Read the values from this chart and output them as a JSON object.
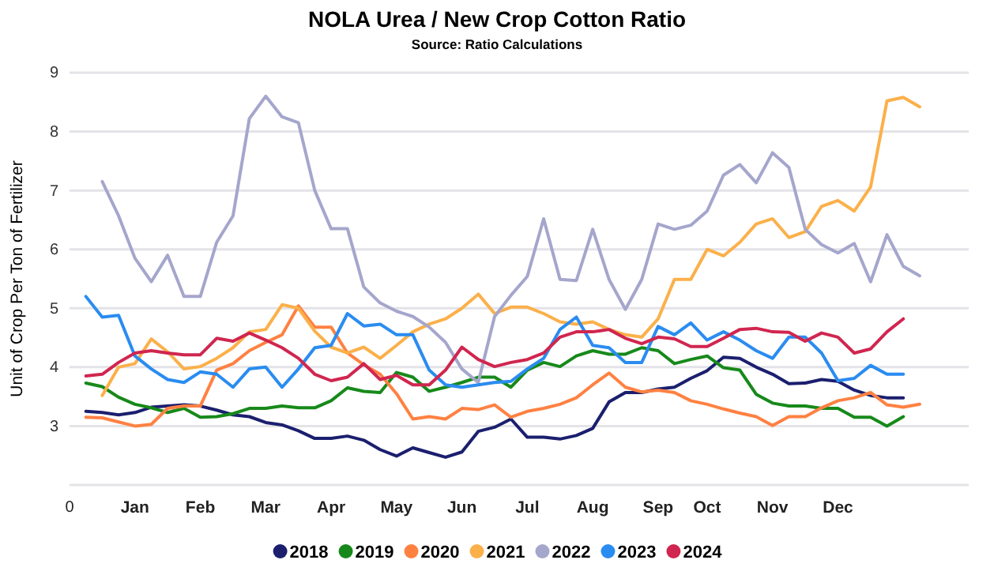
{
  "chart_data": {
    "type": "line",
    "title": "NOLA Urea / New Crop Cotton Ratio",
    "subtitle": "Source: Ratio Calculations",
    "ylabel": "Unit of Crop Per Ton of Fertilizer",
    "categories": [
      "0",
      null,
      null,
      null,
      "Jan",
      null,
      null,
      null,
      "Feb",
      null,
      null,
      null,
      "Mar",
      null,
      null,
      null,
      "Apr",
      null,
      null,
      null,
      "May",
      null,
      null,
      null,
      "Jun",
      null,
      null,
      null,
      "Jul",
      null,
      null,
      null,
      "Aug",
      null,
      null,
      null,
      "Sep",
      null,
      null,
      "Oct",
      null,
      null,
      null,
      "Nov",
      null,
      null,
      null,
      "Dec",
      null,
      null,
      null,
      null,
      null,
      null,
      null,
      null
    ],
    "ylim": [
      2,
      9
    ],
    "yticks": [
      {
        "value": 2,
        "label": null
      },
      3,
      4,
      5,
      6,
      7,
      8,
      9
    ],
    "grid": "y",
    "legend": "bottom",
    "series": [
      {
        "name": "2018",
        "color": "#1b1f6e",
        "values": [
          null,
          3.25,
          3.23,
          3.19,
          3.23,
          3.32,
          3.34,
          3.36,
          3.34,
          3.27,
          3.19,
          3.16,
          3.06,
          3.02,
          2.92,
          2.79,
          2.79,
          2.83,
          2.76,
          2.6,
          2.49,
          2.63,
          2.55,
          2.47,
          2.56,
          2.91,
          2.98,
          3.12,
          2.81,
          2.81,
          2.78,
          2.84,
          2.96,
          3.41,
          3.57,
          3.57,
          3.63,
          3.66,
          3.81,
          3.94,
          4.17,
          4.15,
          4.0,
          3.88,
          3.72,
          3.73,
          3.79,
          3.76,
          3.61,
          3.52,
          3.48,
          3.48,
          null,
          null,
          null,
          null
        ]
      },
      {
        "name": "2019",
        "color": "#17891a",
        "values": [
          null,
          3.73,
          3.67,
          3.49,
          3.37,
          3.31,
          3.23,
          3.3,
          3.15,
          3.16,
          3.21,
          3.3,
          3.3,
          3.34,
          3.31,
          3.31,
          3.43,
          3.65,
          3.59,
          3.57,
          3.91,
          3.83,
          3.59,
          3.66,
          3.74,
          3.83,
          3.83,
          3.66,
          3.95,
          4.08,
          4.01,
          4.19,
          4.28,
          4.22,
          4.22,
          4.33,
          4.28,
          4.06,
          4.13,
          4.19,
          3.99,
          3.95,
          3.54,
          3.39,
          3.34,
          3.34,
          3.3,
          3.3,
          3.15,
          3.15,
          3.0,
          3.16,
          null,
          null,
          null,
          null
        ]
      },
      {
        "name": "2020",
        "color": "#ff8142",
        "values": [
          null,
          3.15,
          3.14,
          3.07,
          3.0,
          3.03,
          3.3,
          3.34,
          3.34,
          3.95,
          4.06,
          4.28,
          4.42,
          4.55,
          5.04,
          4.68,
          4.68,
          4.24,
          4.04,
          3.88,
          3.55,
          3.12,
          3.16,
          3.12,
          3.3,
          3.28,
          3.36,
          3.15,
          3.25,
          3.3,
          3.37,
          3.48,
          3.7,
          3.9,
          3.66,
          3.58,
          3.61,
          3.57,
          3.43,
          3.37,
          3.29,
          3.22,
          3.16,
          3.01,
          3.16,
          3.16,
          3.31,
          3.43,
          3.48,
          3.57,
          3.36,
          3.32,
          3.37,
          null,
          null,
          null
        ]
      },
      {
        "name": "2021",
        "color": "#fbb04a",
        "values": [
          null,
          null,
          3.52,
          4.0,
          4.06,
          4.48,
          4.26,
          3.97,
          4.01,
          4.15,
          4.33,
          4.6,
          4.64,
          5.06,
          5.0,
          4.61,
          4.34,
          4.24,
          4.34,
          4.15,
          4.37,
          4.6,
          4.73,
          4.82,
          5.0,
          5.24,
          4.91,
          5.02,
          5.02,
          4.91,
          4.77,
          4.73,
          4.77,
          4.64,
          4.55,
          4.51,
          4.82,
          5.49,
          5.49,
          6.0,
          5.89,
          6.12,
          6.43,
          6.52,
          6.2,
          6.3,
          6.73,
          6.83,
          6.65,
          7.06,
          8.52,
          8.58,
          8.42,
          null,
          null,
          null
        ]
      },
      {
        "name": "2022",
        "color": "#a5a6cc",
        "values": [
          null,
          null,
          7.15,
          6.57,
          5.85,
          5.45,
          5.9,
          5.2,
          5.2,
          6.12,
          6.57,
          8.22,
          8.6,
          8.25,
          8.15,
          7.0,
          6.35,
          6.35,
          5.36,
          5.09,
          4.95,
          4.86,
          4.68,
          4.42,
          3.97,
          3.74,
          4.86,
          5.22,
          5.54,
          6.52,
          5.49,
          5.47,
          6.34,
          5.49,
          4.98,
          5.49,
          6.43,
          6.34,
          6.41,
          6.65,
          7.26,
          7.44,
          7.13,
          7.64,
          7.39,
          6.34,
          6.08,
          5.94,
          6.1,
          5.45,
          6.25,
          5.71,
          5.55,
          null,
          null,
          null
        ]
      },
      {
        "name": "2023",
        "color": "#2a8cf0",
        "values": [
          null,
          5.2,
          4.85,
          4.88,
          4.19,
          3.97,
          3.79,
          3.74,
          3.92,
          3.88,
          3.66,
          3.97,
          4.0,
          3.66,
          3.97,
          4.33,
          4.37,
          4.91,
          4.7,
          4.73,
          4.55,
          4.55,
          3.95,
          3.7,
          3.66,
          3.7,
          3.74,
          3.76,
          3.97,
          4.15,
          4.64,
          4.85,
          4.37,
          4.33,
          4.08,
          4.08,
          4.69,
          4.55,
          4.75,
          4.46,
          4.6,
          4.46,
          4.28,
          4.15,
          4.51,
          4.51,
          4.24,
          3.77,
          3.81,
          4.03,
          3.88,
          3.88,
          null,
          null,
          null,
          null
        ]
      },
      {
        "name": "2024",
        "color": "#d0264f",
        "values": [
          null,
          3.85,
          3.88,
          4.08,
          4.24,
          4.28,
          4.24,
          4.21,
          4.21,
          4.49,
          4.44,
          4.58,
          4.46,
          4.33,
          4.15,
          3.88,
          3.77,
          3.83,
          4.06,
          3.79,
          3.86,
          3.7,
          3.7,
          3.95,
          4.34,
          4.13,
          4.01,
          4.08,
          4.13,
          4.24,
          4.51,
          4.6,
          4.6,
          4.64,
          4.49,
          4.4,
          4.51,
          4.48,
          4.35,
          4.35,
          4.49,
          4.64,
          4.66,
          4.6,
          4.59,
          4.44,
          4.58,
          4.51,
          4.24,
          4.31,
          4.6,
          4.82,
          null,
          null,
          null,
          null
        ]
      }
    ]
  }
}
